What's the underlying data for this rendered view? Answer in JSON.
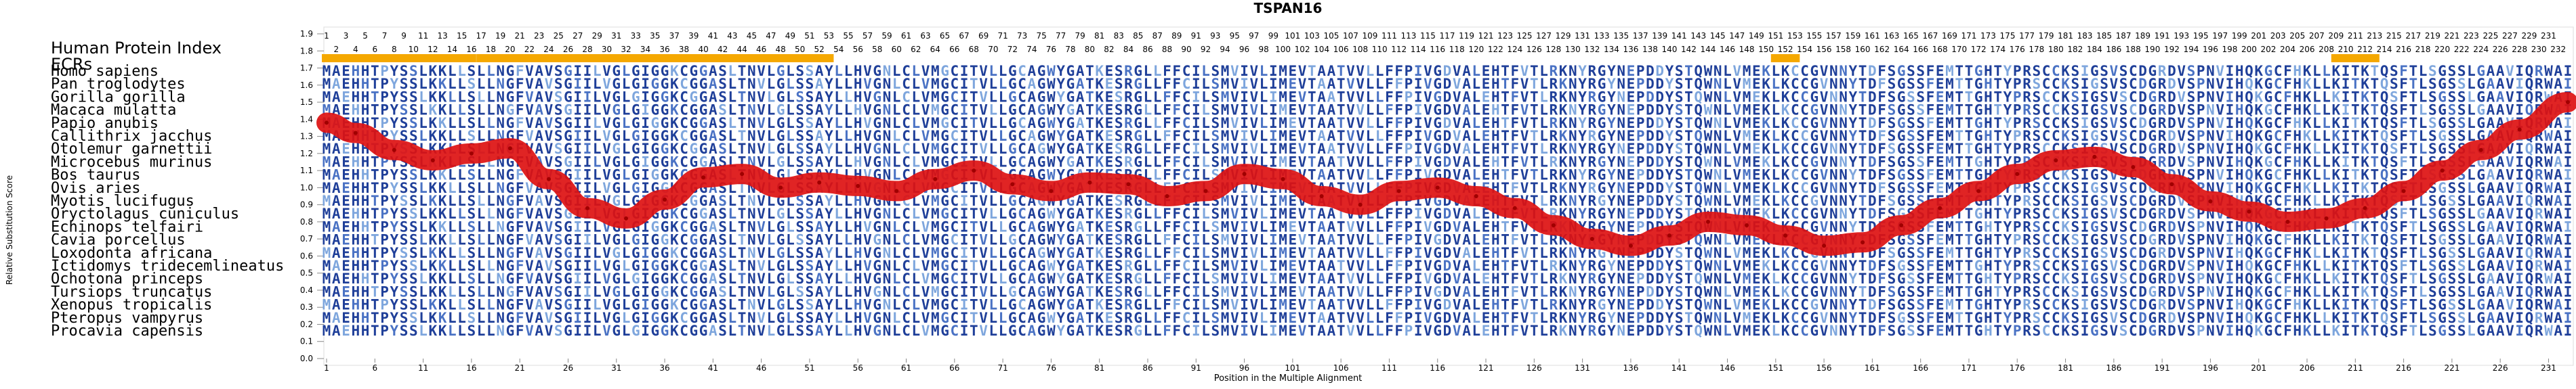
{
  "chart_data": {
    "type": "line",
    "title": "TSPAN16",
    "panel_label": "Human Protein Index",
    "ecr_label": "ECRs",
    "xlabel": "Position in the Multiple Alignment",
    "ylabel": "Relative Substitution Score",
    "xlim": [
      1,
      233
    ],
    "ylim": [
      0.0,
      1.9
    ],
    "y_ticks": [
      "0.0",
      "0.1",
      "0.2",
      "0.3",
      "0.4",
      "0.5",
      "0.6",
      "0.7",
      "0.8",
      "0.9",
      "1.0",
      "1.1",
      "1.2",
      "1.3",
      "1.4",
      "1.5",
      "1.6",
      "1.7",
      "1.8",
      "1.9"
    ],
    "x_ticks": [
      1,
      6,
      11,
      16,
      21,
      26,
      31,
      36,
      41,
      46,
      51,
      56,
      61,
      66,
      71,
      76,
      81,
      86,
      91,
      96,
      101,
      106,
      111,
      116,
      121,
      126,
      131,
      136,
      141,
      146,
      151,
      156,
      161,
      166,
      171,
      176,
      181,
      186,
      191,
      196,
      201,
      206,
      211,
      216,
      221,
      226,
      231
    ],
    "protein_index_top": [
      1,
      3,
      5,
      7,
      9,
      11,
      13,
      15,
      17,
      19,
      21,
      23,
      25,
      27,
      29,
      31,
      33,
      35,
      37,
      39,
      41,
      43,
      45,
      47,
      49,
      51,
      53,
      55,
      57,
      59,
      61,
      63,
      65,
      67,
      69,
      71,
      73,
      75,
      77,
      79,
      81,
      83,
      85,
      87,
      89,
      91,
      93,
      95,
      97,
      99,
      101,
      103,
      105,
      107,
      109,
      111,
      113,
      115,
      117,
      119,
      121,
      123,
      125,
      127,
      129,
      131,
      133,
      135,
      137,
      139,
      141,
      143,
      145,
      147,
      149,
      151,
      153,
      155,
      157,
      159,
      161,
      163,
      165,
      167,
      169,
      171,
      173,
      175,
      177,
      179,
      181,
      183,
      185,
      187,
      189,
      191,
      193,
      195,
      197,
      199,
      201,
      203,
      205,
      207,
      209,
      211,
      213,
      215,
      217,
      219,
      221,
      223,
      225,
      227,
      229,
      231
    ],
    "protein_index_bottom": [
      2,
      4,
      6,
      8,
      10,
      12,
      14,
      16,
      18,
      20,
      22,
      24,
      26,
      28,
      30,
      32,
      34,
      36,
      38,
      40,
      42,
      44,
      46,
      48,
      50,
      52,
      54,
      56,
      58,
      60,
      62,
      64,
      66,
      68,
      70,
      72,
      74,
      76,
      78,
      80,
      82,
      84,
      86,
      88,
      90,
      92,
      94,
      96,
      98,
      100,
      102,
      104,
      106,
      108,
      110,
      112,
      114,
      116,
      118,
      120,
      122,
      124,
      126,
      128,
      130,
      132,
      134,
      136,
      138,
      140,
      142,
      144,
      146,
      148,
      150,
      152,
      154,
      156,
      158,
      160,
      162,
      164,
      166,
      168,
      170,
      172,
      174,
      176,
      178,
      180,
      182,
      184,
      186,
      188,
      190,
      192,
      194,
      196,
      198,
      200,
      202,
      204,
      206,
      208,
      210,
      212,
      214,
      216,
      218,
      220,
      222,
      224,
      226,
      228,
      230,
      232
    ],
    "ecr_segments": [
      [
        1,
        16
      ],
      [
        17,
        53
      ],
      [
        151,
        153
      ],
      [
        209,
        213
      ]
    ],
    "species": [
      "Homo sapiens",
      "Pan troglodytes",
      "Gorilla gorilla",
      "Macaca mulatta",
      "Papio anubis",
      "Callithrix jacchus",
      "Otolemur garnettii",
      "Microcebus murinus",
      "Bos taurus",
      "Ovis aries",
      "Myotis lucifugus",
      "Oryctolagus cuniculus",
      "Echinops telfairi",
      "Cavia porcellus",
      "Loxodonta africana",
      "Ictidomys tridecemlineatus",
      "Ochotona princeps",
      "Tursiops truncatus",
      "Xenopus tropicalis",
      "Pteropus vampyrus",
      "Procavia capensis"
    ],
    "sequences": [
      "MAEHHTPYSSLKKLLSLLNGFVAVSGIILVGLGIGGKCGGASLTNVLGLSSAYLLHVGNLCLVMGCITVLLGCAGWYGATKESRGLLFFCILSMVIVLIMEVTAATVVLLFFPIVGDVALEHTFVTLRKNYRGYNEPDDYSTQWNLVMEKLKCCGVNNYTDFSGSSFEMTTGHTYPRSCCKSIGSVSCDGRDVSPNVIHQKGCFHKLLKITKTQSFTLSGSSLGAAVIQRWAIL",
      "MAEHHTPYSSLKKLLSLLNGFVAVSGIILVGLGIGGKCGGASLTNVLGLSSAYLLHVGNLCLVMGCITVLLGCAGWYGATKESRGLLFFCILSMVIVLIMEVTAATVVLLFFPIVGDVALEHTFVTLRKNYRGYNEPDDYSTQWNLVMEKLKCCGVNNYTDFSGSSFEMTTGHTYPRSCCKSIGSVSCDGRDVSPNVIHQKGCFHKLLKITKTQSFTLSGSSLGAAVIQRWAIL",
      "MAEHHTPYSSLKKLLSLLNGFVAVSGIILVGLGIGGKCGGASLTNVLGLSSAYLLHVGNLCLVMGCITVLLGCAGWYGATKESRGLLFFCILSMVIVLIMEVTAATVVLLFFPIVGDVALEHTFVTLRKNYRGYNEPDDYSTQWNLVMEKLKCCGVNNYTDFSGSSFEMTTGHTYPRSCCKSIGSVSCDGRDVSPNVIHQKGCFHKLLKITKTQSFTLSGSSLGAAVIQRWAIL",
      "MAEHHTPYSSLKKLLSLLNGFVAVSGIILVGLGIGGKCGGASLTNVLGLSSAYLLHVGNLCLVMGCITVLLGCAGWYGATKESRGLLFFCILSMVIVLIMEVTAATVVLLFFPIVGDVALEHTFVTLRKNYRGYNEPDDYSTQWNLVMEKLKCCGVNNYTDFSGSSFEMTTGHTYPRSCCKSIGSVSCDGRDVSPNVIHQKGCFHKLLKITKTQSFTLSGSSLGAAVIQRWAIL",
      "MAEHHTPYSSLKKLLSLLNGFVAVSGIILVGLGIGGKCGGASLTNVLGLSSAYLLHVGNLCLVMGCITVLLGCAGWYGATKESRGLLFFCILSMVIVLIMEVTAATVVLLFFPIVGDVALEHTFVTLRKNYRGYNEPDDYSTQWNLVMEKLKCCGVNNYTDFSGSSFEMTTGHTYPRSCCKSIGSVSCDGRDVSPNVIHQKGCFHKLLKITKTQSFTLSGSSLGAAVIQRWAIL",
      "MAEHHTPYSSLKKLLSLLNGFVAVSGIILVGLGIGGKCGGASLTNVLGLSSAYLLHVGNLCLVMGCITVLLGCAGWYGATKESRGLLFFCILSMVIVLIMEVTAATVVLLFFPIVGDVALEHTFVTLRKNYRGYNEPDDYSTQWNLVMEKLKCCGVNNYTDFSGSSFEMTTGHTYPRSCCKSIGSVSCDGRDVSPNVIHQKGCFHKLLKITKTQSFTLSGSSLGAAVIQRWAIL",
      "MAEHHTPYSSLKKLLSLLNGFVAVSGIILVGLGIGGKCGGASLTNVLGLSSAYLLHVGNLCLVMGCITVLLGCAGWYGATKESRGLLFFCILSMVIVLIMEVTAATVVLLFFPIVGDVALEHTFVTLRKNYRGYNEPDDYSTQWNLVMEKLKCCGVNNYTDFSGSSFEMTTGHTYPRSCCKSIGSVSCDGRDVSPNVIHQKGCFHKLLKITKTQSFTLSGSSLGAAVIQRWAIL",
      "MAEHHTPYSSLKKLLSLLNGFVAVSGIILVGLGIGGKCGGASLTNVLGLSSAYLLHVGNLCLVMGCITVLLGCAGWYGATKESRGLLFFCILSMVIVLIMEVTAATVVLLFFPIVGDVALEHTFVTLRKNYRGYNEPDDYSTQWNLVMEKLKCCGVNNYTDFSGSSFEMTTGHTYPRSCCKSIGSVSCDGRDVSPNVIHQKGCFHKLLKITKTQSFTLSGSSLGAAVIQRWAIL",
      "MAEHHTPYSSLKKLLSLLNGFVAVSGIILVGLGIGGKCGGASLTNVLGLSSAYLLHVGNLCLVMGCITVLLGCAGWYGATKESRGLLFFCILSMVIVLIMEVTAATVVLLFFPIVGDVALEHTFVTLRKNYRGYNEPDDYSTQWNLVMEKLKCCGVNNYTDFSGSSFEMTTGHTYPRSCCKSIGSVSCDGRDVSPNVIHQKGCFHKLLKITKTQSFTLSGSSLGAAVIQRWAIL",
      "MAEHHTPYSSLKKLLSLLNGFVAVSGIILVGLGIGGKCGGASLTNVLGLSSAYLLHVGNLCLVMGCITVLLGCAGWYGATKESRGLLFFCILSMVIVLIMEVTAATVVLLFFPIVGDVALEHTFVTLRKNYRGYNEPDDYSTQWNLVMEKLKCCGVNNYTDFSGSSFEMTTGHTYPRSCCKSIGSVSCDGRDVSPNVIHQKGCFHKLLKITKTQSFTLSGSSLGAAVIQRWAIL",
      "MAEHHTPYSSLKKLLSLLNGFVAVSGIILVGLGIGGKCGGASLTNVLGLSSAYLLHVGNLCLVMGCITVLLGCAGWYGATKESRGLLFFCILSMVIVLIMEVTAATVVLLFFPIVGDVALEHTFVTLRKNYRGYNEPDDYSTQWNLVMEKLKCCGVNNYTDFSGSSFEMTTGHTYPRSCCKSIGSVSCDGRDVSPNVIHQKGCFHKLLKITKTQSFTLSGSSLGAAVIQRWAIL",
      "MAEHHTPYSSLKKLLSLLNGFVAVSGIILVGLGIGGKCGGASLTNVLGLSSAYLLHVGNLCLVMGCITVLLGCAGWYGATKESRGLLFFCILSMVIVLIMEVTAATVVLLFFPIVGDVALEHTFVTLRKNYRGYNEPDDYSTQWNLVMEKLKCCGVNNYTDFSGSSFEMTTGHTYPRSCCKSIGSVSCDGRDVSPNVIHQKGCFHKLLKITKTQSFTLSGSSLGAAVIQRWAIL",
      "MAEHHTPYSSLKKLLSLLNGFVAVSGIILVGLGIGGKCGGASLTNVLGLSSAYLLHVGNLCLVMGCITVLLGCAGWYGATKESRGLLFFCILSMVIVLIMEVTAATVVLLFFPIVGDVALEHTFVTLRKNYRGYNEPDDYSTQWNLVMEKLKCCGVNNYTDFSGSSFEMTTGHTYPRSCCKSIGSVSCDGRDVSPNVIHQKGCFHKLLKITKTQSFTLSGSSLGAAVIQRWAIL",
      "MAEHHTPYSSLKKLLSLLNGFVAVSGIILVGLGIGGKCGGASLTNVLGLSSAYLLHVGNLCLVMGCITVLLGCAGWYGATKESRGLLFFCILSMVIVLIMEVTAATVVLLFFPIVGDVALEHTFVTLRKNYRGYNEPDDYSTQWNLVMEKLKCCGVNNYTDFSGSSFEMTTGHTYPRSCCKSIGSVSCDGRDVSPNVIHQKGCFHKLLKITKTQSFTLSGSSLGAAVIQRWAIL",
      "MAEHHTPYSSLKKLLSLLNGFVAVSGIILVGLGIGGKCGGASLTNVLGLSSAYLLHVGNLCLVMGCITVLLGCAGWYGATKESRGLLFFCILSMVIVLIMEVTAATVVLLFFPIVGDVALEHTFVTLRKNYRGYNEPDDYSTQWNLVMEKLKCCGVNNYTDFSGSSFEMTTGHTYPRSCCKSIGSVSCDGRDVSPNVIHQKGCFHKLLKITKTQSFTLSGSSLGAAVIQRWAIL",
      "MAEHHTPYSSLKKLLSLLNGFVAVSGIILVGLGIGGKCGGASLTNVLGLSSAYLLHVGNLCLVMGCITVLLGCAGWYGATKESRGLLFFCILSMVIVLIMEVTAATVVLLFFPIVGDVALEHTFVTLRKNYRGYNEPDDYSTQWNLVMEKLKCCGVNNYTDFSGSSFEMTTGHTYPRSCCKSIGSVSCDGRDVSPNVIHQKGCFHKLLKITKTQSFTLSGSSLGAAVIQRWAIL",
      "MAEHHTPYSSLKKLLSLLNGFVAVSGIILVGLGIGGKCGGASLTNVLGLSSAYLLHVGNLCLVMGCITVLLGCAGWYGATKESRGLLFFCILSMVIVLIMEVTAATVVLLFFPIVGDVALEHTFVTLRKNYRGYNEPDDYSTQWNLVMEKLKCCGVNNYTDFSGSSFEMTTGHTYPRSCCKSIGSVSCDGRDVSPNVIHQKGCFHKLLKITKTQSFTLSGSSLGAAVIQRWAIL",
      "MAEHHTPYSSLKKLLSLLNGFVAVSGIILVGLGIGGKCGGASLTNVLGLSSAYLLHVGNLCLVMGCITVLLGCAGWYGATKESRGLLFFCILSMVIVLIMEVTAATVVLLFFPIVGDVALEHTFVTLRKNYRGYNEPDDYSTQWNLVMEKLKCCGVNNYTDFSGSSFEMTTGHTYPRSCCKSIGSVSCDGRDVSPNVIHQKGCFHKLLKITKTQSFTLSGSSLGAAVIQRWAIL",
      "MAEHHTPYSSLKKLLSLLNGFVAVSGIILVGLGIGGKCGGASLTNVLGLSSAYLLHVGNLCLVMGCITVLLGCAGWYGATKESRGLLFFCILSMVIVLIMEVTAATVVLLFFPIVGDVALEHTFVTLRKNYRGYNEPDDYSTQWNLVMEKLKCCGVNNYTDFSGSSFEMTTGHTYPRSCCKSIGSVSCDGRDVSPNVIHQKGCFHKLLKITKTQSFTLSGSSLGAAVIQRWAIL",
      "MAEHHTPYSSLKKLLSLLNGFVAVSGIILVGLGIGGKCGGASLTNVLGLSSAYLLHVGNLCLVMGCITVLLGCAGWYGATKESRGLLFFCILSMVIVLIMEVTAATVVLLFFPIVGDVALEHTFVTLRKNYRGYNEPDDYSTQWNLVMEKLKCCGVNNYTDFSGSSFEMTTGHTYPRSCCKSIGSVSCDGRDVSPNVIHQKGCFHKLLKITKTQSFTLSGSSLGAAVIQRWAIL",
      "MAEHHTPYSSLKKLLSLLNGFVAVSGIILVGLGIGGKCGGASLTNVLGLSSAYLLHVGNLCLVMGCITVLLGCAGWYGATKESRGLLFFCILSMVIVLIMEVTAATVVLLFFPIVGDVALEHTFVTLRKNYRGYNEPDDYSTQWNLVMEKLKCCGVNNYTDFSGSSFEMTTGHTYPRSCCKSIGSVSCDGRDVSPNVIHQKGCFHKLLKITKTQSFTLSGSSLGAAVIQRWAIL"
    ],
    "series": [
      {
        "x": [
          1,
          4,
          8,
          12,
          16,
          20,
          24,
          28,
          32,
          36,
          40,
          44,
          48,
          52,
          56,
          60,
          64,
          68,
          72,
          76,
          80,
          84,
          88,
          92,
          96,
          100,
          104,
          108,
          112,
          116,
          120,
          124,
          128,
          132,
          136,
          140,
          144,
          148,
          152,
          156,
          160,
          164,
          168,
          172,
          176,
          180,
          184,
          188,
          192,
          196,
          200,
          204,
          208,
          212,
          216,
          220,
          224,
          228,
          233
        ],
        "values": [
          1.38,
          1.32,
          1.22,
          1.16,
          1.2,
          1.23,
          1.05,
          0.88,
          0.82,
          0.93,
          1.06,
          1.08,
          1.0,
          1.03,
          1.01,
          0.98,
          1.05,
          1.1,
          1.02,
          0.98,
          1.03,
          1.02,
          0.95,
          0.98,
          1.08,
          1.05,
          0.95,
          0.9,
          0.98,
          1.0,
          0.95,
          0.88,
          0.78,
          0.7,
          0.66,
          0.72,
          0.8,
          0.78,
          0.72,
          0.66,
          0.68,
          0.78,
          0.88,
          0.98,
          1.08,
          1.16,
          1.18,
          1.12,
          1.02,
          0.92,
          0.86,
          0.8,
          0.82,
          0.88,
          0.98,
          1.1,
          1.22,
          1.34,
          1.5
        ]
      }
    ],
    "colors": {
      "line": "#dd1111",
      "ecr": "#f5a800",
      "identical": "#1f3f99",
      "similar": "#4a72c4",
      "weak": "#7ea6dd"
    }
  }
}
